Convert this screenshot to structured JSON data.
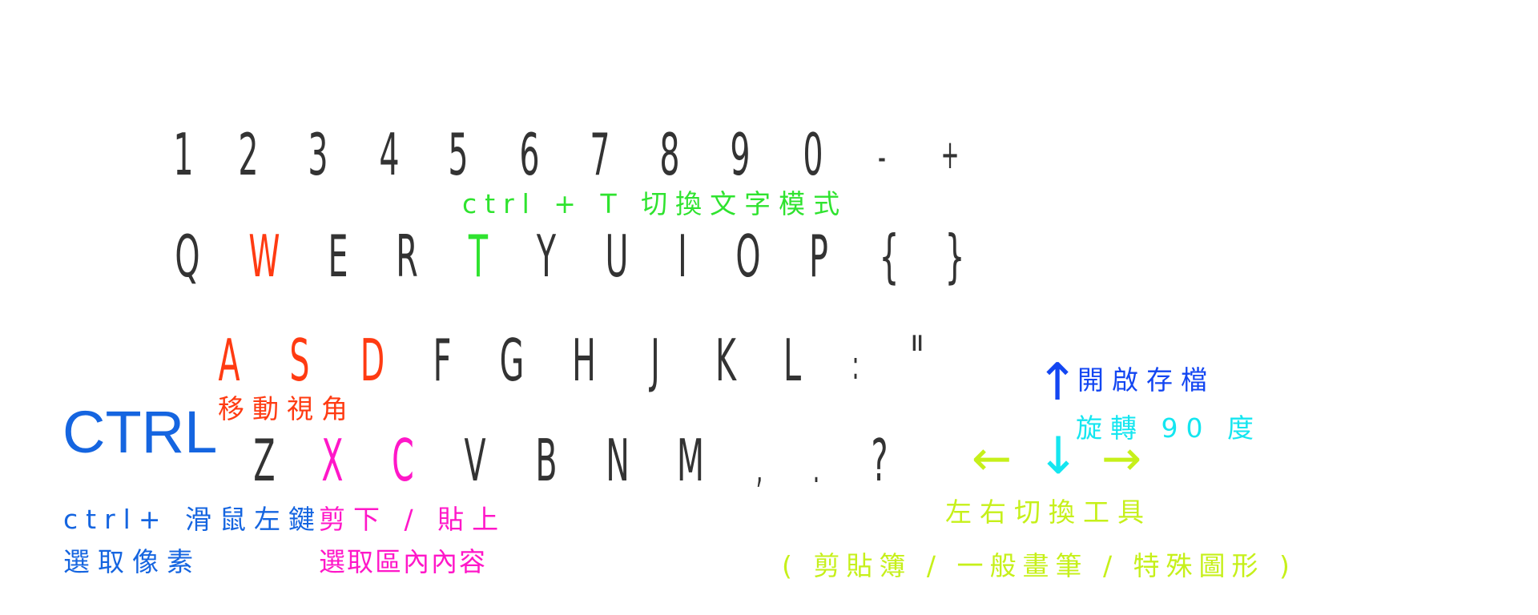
{
  "colors": {
    "default_key": "#333333",
    "ctrl": "#1565e0",
    "move_view": "#ff3b12",
    "cut_paste": "#ff17c8",
    "text_mode": "#2fe32f",
    "open_save": "#1346f2",
    "rotate": "#14e6f0",
    "switch_tool": "#c6f01a"
  },
  "row1": [
    "1",
    "2",
    "3",
    "4",
    "5",
    "6",
    "7",
    "8",
    "9",
    "0",
    "-",
    "+"
  ],
  "row2": [
    "Q",
    "W",
    "E",
    "R",
    "T",
    "Y",
    "U",
    "I",
    "O",
    "P",
    "{",
    "}"
  ],
  "row3": [
    "A",
    "S",
    "D",
    "F",
    "G",
    "H",
    "J",
    "K",
    "L",
    ":",
    "\""
  ],
  "row4": [
    "Z",
    "X",
    "C",
    "V",
    "B",
    "N",
    "M",
    ",",
    ".",
    "?"
  ],
  "ctrl_key": "CTRL",
  "labels": {
    "text_mode": "ctrl + T 切換文字模式",
    "move_view": "移動視角",
    "ctrl_click": "ctrl+ 滑鼠左鍵",
    "select_pixel": "選取像素",
    "cut_paste": "剪下 / 貼上",
    "select_area": "選取區內內容",
    "open_save": "開啟存檔",
    "rotate": "旋轉 90 度",
    "switch_tool": "左右切換工具",
    "tool_list": "( 剪貼簿 / 一般畫筆 / 特殊圖形 )"
  },
  "arrows": {
    "up": "↑",
    "down": "↓",
    "left": "←",
    "right": "→"
  }
}
